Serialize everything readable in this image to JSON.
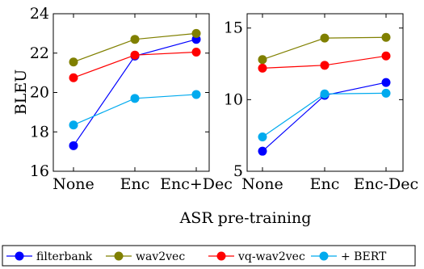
{
  "chart_data": [
    {
      "type": "line",
      "title": "",
      "xlabel": "ASR pre-training",
      "ylabel": "BLEU",
      "categories": [
        "None",
        "Enc",
        "Enc+Dec"
      ],
      "ylim": [
        16,
        24
      ],
      "yticks": [
        16,
        18,
        20,
        22,
        24
      ],
      "grid": false,
      "series": [
        {
          "name": "filterbank",
          "color": "#0000ff",
          "values": [
            17.3,
            21.85,
            22.7
          ]
        },
        {
          "name": "wav2vec",
          "color": "#808000",
          "values": [
            21.55,
            22.7,
            23.0
          ]
        },
        {
          "name": "vq-wav2vec",
          "color": "#ff0000",
          "values": [
            20.75,
            21.9,
            22.05
          ]
        },
        {
          "name": "+ BERT",
          "color": "#00aaee",
          "values": [
            18.35,
            19.7,
            19.9
          ]
        }
      ]
    },
    {
      "type": "line",
      "title": "",
      "xlabel": "ASR pre-training",
      "ylabel": "",
      "categories": [
        "None",
        "Enc",
        "Enc-Dec"
      ],
      "ylim": [
        5,
        16
      ],
      "yticks": [
        5,
        10,
        15
      ],
      "grid": false,
      "series": [
        {
          "name": "filterbank",
          "color": "#0000ff",
          "values": [
            6.4,
            10.3,
            11.2
          ]
        },
        {
          "name": "wav2vec",
          "color": "#808000",
          "values": [
            12.8,
            14.3,
            14.35
          ]
        },
        {
          "name": "vq-wav2vec",
          "color": "#ff0000",
          "values": [
            12.2,
            12.4,
            13.05
          ]
        },
        {
          "name": "+ BERT",
          "color": "#00aaee",
          "values": [
            7.4,
            10.4,
            10.45
          ]
        }
      ]
    }
  ],
  "shared_xlabel": "ASR pre-training",
  "legend": {
    "placement": "bottom",
    "items": [
      "filterbank",
      "wav2vec",
      "vq-wav2vec",
      "+ BERT"
    ]
  }
}
